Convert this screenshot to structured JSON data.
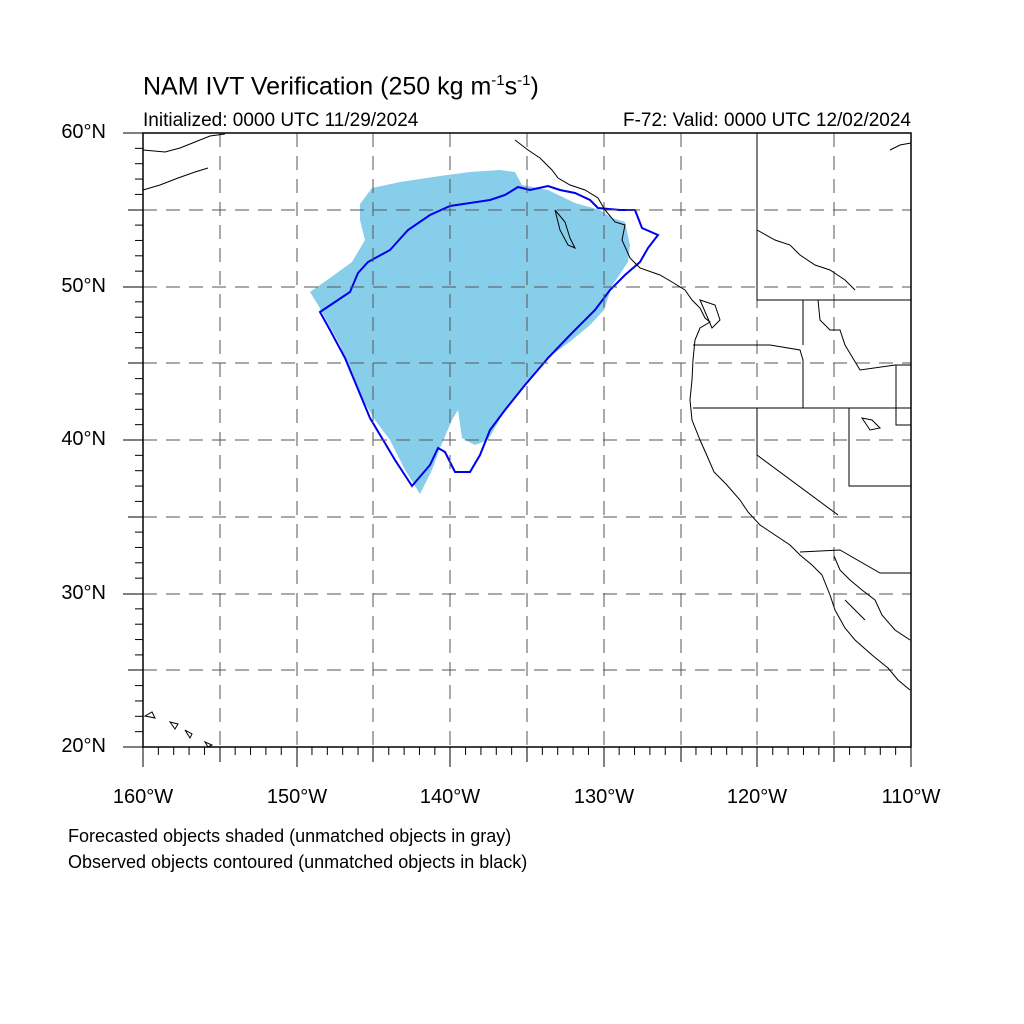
{
  "header": {
    "title_prefix": "NAM IVT Verification (250 kg m",
    "exp1": "-1",
    "title_mid": "s",
    "exp2": "-1",
    "title_suffix": ")",
    "initialized": "Initialized: 0000 UTC 11/29/2024",
    "valid": "F-72: Valid: 0000 UTC 12/02/2024"
  },
  "axes": {
    "lat_labels": [
      "60°N",
      "50°N",
      "40°N",
      "30°N",
      "20°N"
    ],
    "lon_labels": [
      "160°W",
      "150°W",
      "140°W",
      "130°W",
      "120°W",
      "110°W"
    ],
    "lat_range": [
      20,
      60
    ],
    "lon_range": [
      -160,
      -110
    ],
    "grid": "dashed, every 5 degrees"
  },
  "legend": {
    "forecast_note": "Forecasted objects shaded (unmatched objects in gray)",
    "observed_note": "Observed objects contoured (unmatched objects in black)"
  },
  "colors": {
    "forecast_fill": "#87CEEB",
    "observed_contour": "#0000EE",
    "coastline": "#000000",
    "grid": "#555555"
  }
}
